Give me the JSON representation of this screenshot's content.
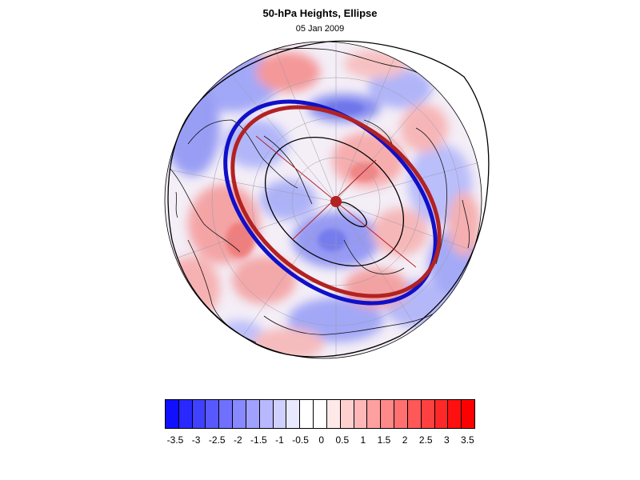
{
  "title": "50-hPa Heights, Ellipse",
  "subtitle": "05 Jan 2009",
  "colorbar": {
    "labels": [
      "-3.5",
      "-3",
      "-2.5",
      "-2",
      "-1.5",
      "-1",
      "-0.5",
      "0",
      "0.5",
      "1",
      "1.5",
      "2",
      "2.5",
      "3",
      "3.5"
    ],
    "colors": [
      "#1010ff",
      "#2828ff",
      "#4040ff",
      "#5858ff",
      "#7070ff",
      "#8888ff",
      "#a0a0ff",
      "#b8b8ff",
      "#d0d0ff",
      "#e8e8ff",
      "#ffffff",
      "#ffffff",
      "#ffe8e8",
      "#ffd0d0",
      "#ffb8b8",
      "#ffa0a0",
      "#ff8888",
      "#ff7070",
      "#ff5858",
      "#ff4040",
      "#ff2828",
      "#ff1010",
      "#ff0000"
    ]
  },
  "map": {
    "projection": "polar stereographic (north)",
    "field": "50-hPa height anomaly",
    "overlays": [
      "coastlines",
      "lat-lon grid",
      "ellipse (red)",
      "ellipse (blue)",
      "contours (black)",
      "ellipse center marker"
    ]
  }
}
